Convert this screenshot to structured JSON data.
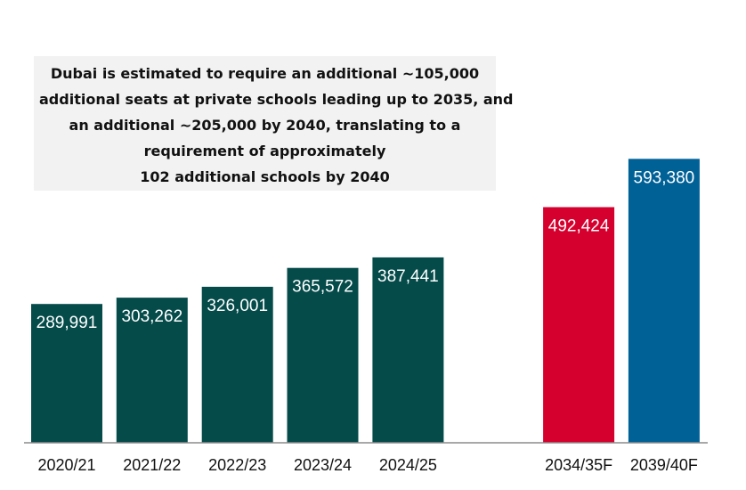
{
  "chart_data": {
    "type": "bar",
    "title": "",
    "xlabel": "",
    "ylabel": "",
    "ylim": [
      0,
      620000
    ],
    "grid": false,
    "legend": "none",
    "categories": [
      "2020/21",
      "2021/22",
      "2022/23",
      "2023/24",
      "2024/25",
      "",
      "2034/35F",
      "2039/40F"
    ],
    "values": [
      289991,
      303262,
      326001,
      365572,
      387441,
      null,
      492424,
      593380
    ],
    "value_labels": [
      "289,991",
      "303,262",
      "326,001",
      "365,572",
      "387,441",
      "",
      "492,424",
      "593,380"
    ],
    "colors": [
      "#054b4a",
      "#054b4a",
      "#054b4a",
      "#054b4a",
      "#054b4a",
      "",
      "#d6002e",
      "#006197"
    ],
    "annotation": {
      "lines": [
        "Dubai is estimated to require an additional ~105,000",
        "additional seats at private schools leading up to 2035, and",
        "an additional ~205,000 by 2040, translating to a",
        "requirement of approximately",
        "102 additional schools by 2040"
      ]
    }
  }
}
